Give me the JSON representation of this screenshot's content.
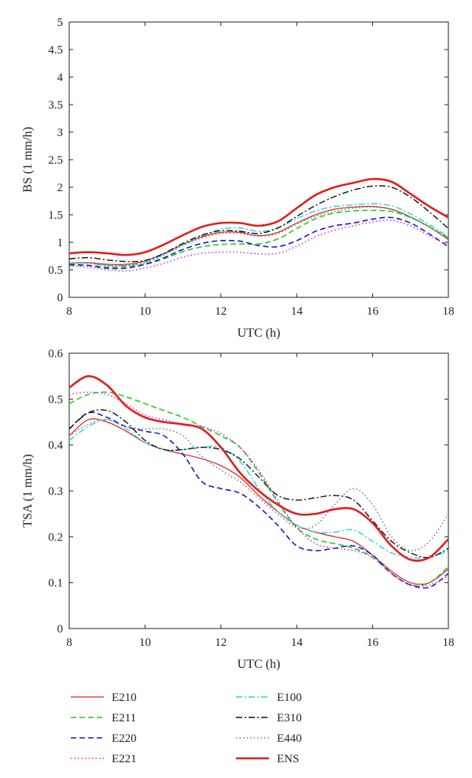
{
  "colors": {
    "E210": "#e02020",
    "E211": "#22cc22",
    "E220": "#1a1acc",
    "E221": "#dd22dd",
    "E100": "#22d6d6",
    "E310": "#111111",
    "E440": "#777777",
    "ENS": "#e02020"
  },
  "legend": {
    "items": [
      {
        "name": "E210",
        "line_style": "solid",
        "color": "#e02020"
      },
      {
        "name": "E211",
        "line_style": "dashed",
        "color": "#22cc22"
      },
      {
        "name": "E220",
        "line_style": "dashed",
        "color": "#1a1acc"
      },
      {
        "name": "E221",
        "line_style": "dotted",
        "color": "#dd22dd"
      },
      {
        "name": "E100",
        "line_style": "dash-dot",
        "color": "#22d6d6"
      },
      {
        "name": "E310",
        "line_style": "dash-dot",
        "color": "#111111"
      },
      {
        "name": "E440",
        "line_style": "dotted",
        "color": "#777777"
      },
      {
        "name": "ENS",
        "line_style": "solid-thick",
        "color": "#e02020"
      }
    ]
  },
  "chart_data": [
    {
      "type": "line",
      "title": "",
      "xlabel": "UTC (h)",
      "ylabel": "BS (1 mm/h)",
      "xlim": [
        8,
        18
      ],
      "ylim": [
        0,
        5
      ],
      "xticks": [
        "8",
        "10",
        "12",
        "14",
        "16",
        "18"
      ],
      "yticks": [
        "0",
        "0.5",
        "1",
        "1.5",
        "2",
        "2.5",
        "3",
        "3.5",
        "4",
        "4.5",
        "5"
      ],
      "grid": false,
      "x": [
        8,
        8.5,
        9,
        9.5,
        10,
        10.5,
        11,
        11.5,
        12,
        12.5,
        13,
        13.5,
        14,
        14.5,
        15,
        15.5,
        16,
        16.5,
        17,
        17.5,
        18
      ],
      "series": [
        {
          "name": "E210",
          "values": [
            0.62,
            0.63,
            0.6,
            0.6,
            0.66,
            0.8,
            0.96,
            1.1,
            1.18,
            1.18,
            1.12,
            1.18,
            1.35,
            1.5,
            1.6,
            1.64,
            1.65,
            1.6,
            1.46,
            1.28,
            1.05
          ]
        },
        {
          "name": "E211",
          "values": [
            0.58,
            0.58,
            0.55,
            0.56,
            0.6,
            0.7,
            0.83,
            0.92,
            0.96,
            0.97,
            0.97,
            1.06,
            1.25,
            1.43,
            1.53,
            1.57,
            1.58,
            1.56,
            1.45,
            1.28,
            1.08
          ]
        },
        {
          "name": "E220",
          "values": [
            0.6,
            0.58,
            0.53,
            0.53,
            0.6,
            0.72,
            0.87,
            0.98,
            1.03,
            1.02,
            0.94,
            0.92,
            1.03,
            1.2,
            1.3,
            1.35,
            1.42,
            1.45,
            1.35,
            1.15,
            0.92
          ]
        },
        {
          "name": "E221",
          "values": [
            0.57,
            0.55,
            0.5,
            0.48,
            0.53,
            0.62,
            0.73,
            0.8,
            0.82,
            0.82,
            0.79,
            0.8,
            0.93,
            1.1,
            1.22,
            1.3,
            1.37,
            1.4,
            1.3,
            1.12,
            0.94
          ]
        },
        {
          "name": "E100",
          "values": [
            0.62,
            0.62,
            0.58,
            0.58,
            0.63,
            0.78,
            0.96,
            1.12,
            1.24,
            1.26,
            1.2,
            1.26,
            1.43,
            1.57,
            1.65,
            1.68,
            1.7,
            1.66,
            1.52,
            1.32,
            1.1
          ]
        },
        {
          "name": "E310",
          "values": [
            0.7,
            0.72,
            0.68,
            0.65,
            0.67,
            0.8,
            0.98,
            1.13,
            1.21,
            1.2,
            1.16,
            1.26,
            1.47,
            1.67,
            1.83,
            1.95,
            2.02,
            2.0,
            1.82,
            1.55,
            1.25
          ]
        },
        {
          "name": "E440",
          "values": [
            0.63,
            0.62,
            0.58,
            0.58,
            0.63,
            0.77,
            0.94,
            1.08,
            1.16,
            1.16,
            1.11,
            1.16,
            1.33,
            1.47,
            1.56,
            1.62,
            1.64,
            1.6,
            1.46,
            1.27,
            1.05
          ]
        },
        {
          "name": "ENS",
          "values": [
            0.8,
            0.82,
            0.8,
            0.77,
            0.82,
            0.96,
            1.13,
            1.28,
            1.35,
            1.35,
            1.3,
            1.38,
            1.62,
            1.86,
            2.0,
            2.08,
            2.15,
            2.1,
            1.88,
            1.65,
            1.45
          ]
        }
      ]
    },
    {
      "type": "line",
      "title": "",
      "xlabel": "UTC (h)",
      "ylabel": "TSA (1 mm/h)",
      "xlim": [
        8,
        18
      ],
      "ylim": [
        0,
        0.6
      ],
      "xticks": [
        "8",
        "10",
        "12",
        "14",
        "16",
        "18"
      ],
      "yticks": [
        "0",
        "0.1",
        "0.2",
        "0.3",
        "0.4",
        "0.5",
        "0.6"
      ],
      "grid": false,
      "x": [
        8,
        8.5,
        9,
        9.5,
        10,
        10.5,
        11,
        11.5,
        12,
        12.5,
        13,
        13.5,
        14,
        14.5,
        15,
        15.5,
        16,
        16.5,
        17,
        17.5,
        18
      ],
      "series": [
        {
          "name": "E210",
          "values": [
            0.42,
            0.455,
            0.45,
            0.43,
            0.405,
            0.39,
            0.38,
            0.37,
            0.355,
            0.33,
            0.29,
            0.255,
            0.225,
            0.21,
            0.2,
            0.19,
            0.16,
            0.125,
            0.1,
            0.1,
            0.13
          ]
        },
        {
          "name": "E211",
          "values": [
            0.49,
            0.51,
            0.515,
            0.505,
            0.49,
            0.475,
            0.46,
            0.44,
            0.42,
            0.395,
            0.34,
            0.275,
            0.22,
            0.195,
            0.185,
            0.175,
            0.155,
            0.12,
            0.095,
            0.1,
            0.135
          ]
        },
        {
          "name": "E220",
          "values": [
            0.435,
            0.47,
            0.46,
            0.44,
            0.43,
            0.42,
            0.38,
            0.32,
            0.305,
            0.295,
            0.265,
            0.225,
            0.18,
            0.17,
            0.175,
            0.18,
            0.16,
            0.12,
            0.095,
            0.09,
            0.12
          ]
        },
        {
          "name": "E221",
          "values": [
            0.51,
            0.515,
            0.51,
            0.49,
            0.465,
            0.455,
            0.445,
            0.44,
            0.425,
            0.395,
            0.345,
            0.28,
            0.22,
            0.185,
            0.175,
            0.17,
            0.155,
            0.12,
            0.095,
            0.095,
            0.115
          ]
        },
        {
          "name": "E100",
          "values": [
            0.41,
            0.44,
            0.455,
            0.435,
            0.405,
            0.39,
            0.39,
            0.395,
            0.395,
            0.365,
            0.305,
            0.255,
            0.225,
            0.21,
            0.21,
            0.215,
            0.19,
            0.165,
            0.155,
            0.155,
            0.17
          ]
        },
        {
          "name": "E310",
          "values": [
            0.435,
            0.47,
            0.475,
            0.45,
            0.41,
            0.39,
            0.39,
            0.395,
            0.39,
            0.37,
            0.33,
            0.29,
            0.28,
            0.285,
            0.29,
            0.28,
            0.235,
            0.19,
            0.165,
            0.155,
            0.175
          ]
        },
        {
          "name": "E440",
          "values": [
            0.42,
            0.445,
            0.455,
            0.44,
            0.435,
            0.435,
            0.42,
            0.375,
            0.345,
            0.32,
            0.285,
            0.25,
            0.22,
            0.225,
            0.27,
            0.305,
            0.27,
            0.2,
            0.17,
            0.19,
            0.25
          ]
        },
        {
          "name": "ENS",
          "values": [
            0.525,
            0.55,
            0.53,
            0.485,
            0.46,
            0.45,
            0.445,
            0.435,
            0.395,
            0.34,
            0.3,
            0.27,
            0.25,
            0.25,
            0.26,
            0.26,
            0.23,
            0.18,
            0.15,
            0.155,
            0.195
          ]
        }
      ]
    }
  ]
}
